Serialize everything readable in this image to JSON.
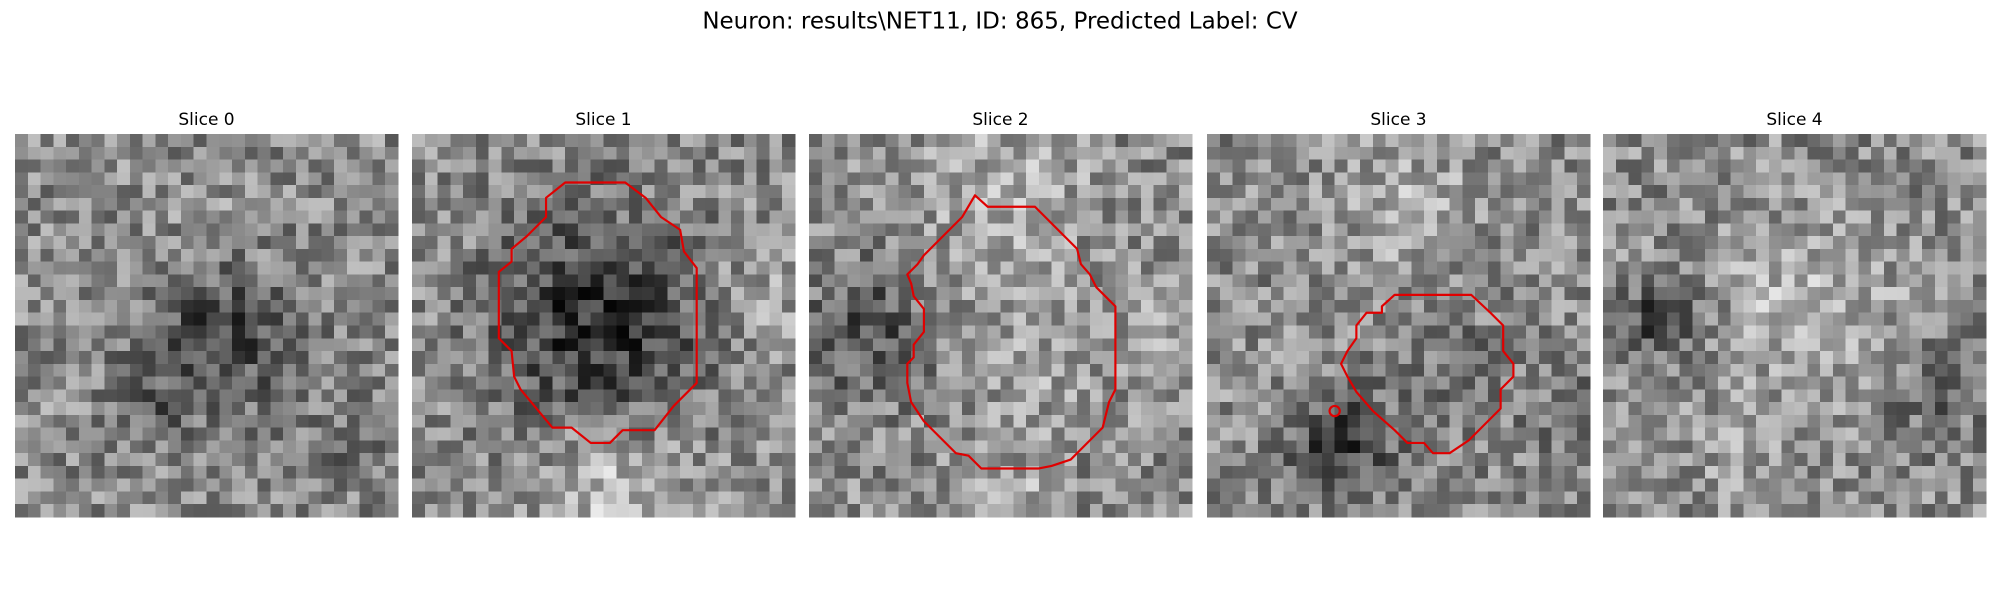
{
  "title": "Neuron: results\\NET11, ID: 865, Predicted Label: CV",
  "panels": [
    {
      "label": "Slice 0"
    },
    {
      "label": "Slice 1"
    },
    {
      "label": "Slice 2"
    },
    {
      "label": "Slice 3"
    },
    {
      "label": "Slice 4"
    }
  ]
}
